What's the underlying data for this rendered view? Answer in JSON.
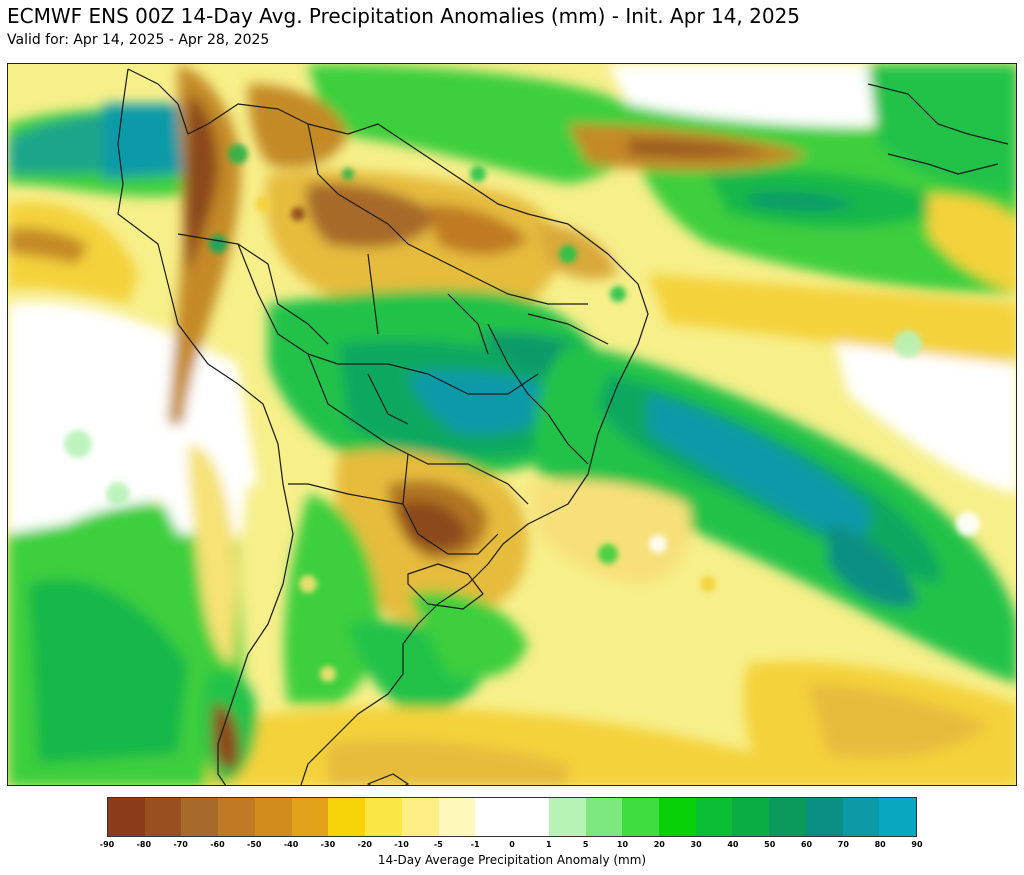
{
  "header": {
    "title": "ECMWF ENS 00Z 14-Day Avg. Precipitation Anomalies (mm) - Init. Apr 14, 2025",
    "subtitle": "Valid for: Apr 14, 2025 - Apr 28, 2025"
  },
  "colorbar": {
    "label": "14-Day Average Precipitation Anomaly (mm)",
    "ticks": [
      "-90",
      "-80",
      "-70",
      "-60",
      "-50",
      "-40",
      "-30",
      "-20",
      "-10",
      "-5",
      "-1",
      "0",
      "1",
      "5",
      "10",
      "20",
      "30",
      "40",
      "50",
      "60",
      "70",
      "80",
      "90"
    ],
    "colors": [
      "#8b3a1a",
      "#9a4f20",
      "#a86a2c",
      "#c07a24",
      "#d28c1c",
      "#e2a21a",
      "#f7d40a",
      "#fce646",
      "#fdef86",
      "#fff8bb",
      "#ffffff",
      "#ffffff",
      "#b7f2b7",
      "#7de87d",
      "#40dd40",
      "#08d108",
      "#0bbf34",
      "#0aad44",
      "#0c9a5c",
      "#0c8e82",
      "#0b9aa6",
      "#0aa8c0"
    ]
  },
  "anomaly_colors": {
    "very_dry": "#8b4a1a",
    "dry": "#c9962f",
    "slightly_dry": "#f6d34a",
    "near_normal": "#ffffff",
    "slightly_wet": "#aef0a8",
    "wet": "#3ccf3c",
    "very_wet": "#079a5a",
    "extreme_wet": "#0b9fb3"
  }
}
